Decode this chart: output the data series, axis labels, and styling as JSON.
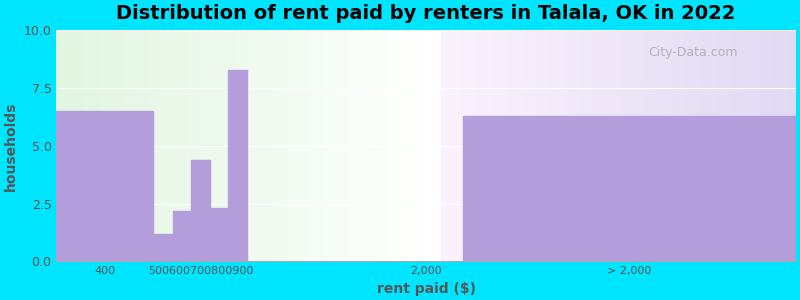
{
  "title": "Distribution of rent paid by renters in Talala, OK in 2022",
  "xlabel": "rent paid ($)",
  "ylabel": "households",
  "bar_labels": [
    "400",
    "500600700800900",
    "2,000",
    "> 2,000"
  ],
  "xtick_labels": [
    "400",
    "500600700800900",
    "2,000",
    "> 2,000"
  ],
  "bar_color": "#b39ddb",
  "background_outer": "#00e5ff",
  "ylim": [
    0,
    10
  ],
  "yticks": [
    0,
    2.5,
    5,
    7.5,
    10
  ],
  "title_fontsize": 14,
  "label_fontsize": 10,
  "watermark": "City-Data.com"
}
